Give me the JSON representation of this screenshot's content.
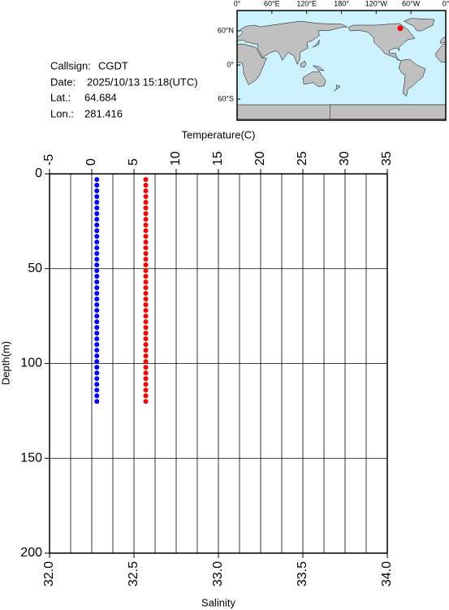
{
  "station": {
    "callsign_label": "Callsign:",
    "callsign": "CGDT",
    "date_label": "Date:",
    "date": "2025/10/13 15:18(UTC)",
    "lat_label": "Lat.:",
    "lat": 64.684,
    "lon_label": "Lon.:",
    "lon": 281.416
  },
  "map": {
    "lonticks": [
      {
        "value": 0,
        "label": "0°"
      },
      {
        "value": 60,
        "label": "60°E"
      },
      {
        "value": 120,
        "label": "120°E"
      },
      {
        "value": 180,
        "label": "180°"
      },
      {
        "value": 240,
        "label": "120°W"
      },
      {
        "value": 300,
        "label": "60°W"
      },
      {
        "value": 360,
        "label": "0°"
      }
    ],
    "latticks": [
      {
        "value": 60,
        "label": "60°N"
      },
      {
        "value": 0,
        "label": "0°"
      },
      {
        "value": -60,
        "label": "60°S"
      }
    ],
    "marker_color": "#ff0000"
  },
  "chart_data": {
    "type": "profile",
    "x_label": "Temperature(C)",
    "x2_label": "Salinity",
    "y_label": "Depth(m)",
    "xlim": [
      -5,
      35
    ],
    "xticks": [
      -5,
      0,
      5,
      10,
      15,
      20,
      25,
      30,
      35
    ],
    "xminorticks": [
      -2.5,
      2.5,
      7.5,
      12.5,
      17.5,
      22.5,
      27.5,
      32.5
    ],
    "x2lim": [
      32,
      34
    ],
    "x2ticks": [
      {
        "value": 32,
        "label": "32.0"
      },
      {
        "value": 32.5,
        "label": "32.5"
      },
      {
        "value": 33,
        "label": "33.0"
      },
      {
        "value": 33.5,
        "label": "33.5"
      },
      {
        "value": 34,
        "label": "34.0"
      }
    ],
    "ylim": [
      0,
      200
    ],
    "yticks": [
      0,
      50,
      100,
      150,
      200
    ],
    "y_inverted": true,
    "grid": true,
    "series": [
      {
        "color": "#0000ff",
        "axis": "x",
        "depth": [
          3,
          6,
          9,
          12,
          15,
          18,
          21,
          24,
          27,
          30,
          33,
          36,
          39,
          42,
          45,
          48,
          51,
          54,
          57,
          60,
          63,
          66,
          69,
          72,
          75,
          78,
          81,
          84,
          87,
          90,
          93,
          96,
          99,
          102,
          105,
          108,
          111,
          114,
          117,
          120
        ],
        "values": [
          0.6,
          0.6,
          0.6,
          0.6,
          0.6,
          0.6,
          0.6,
          0.6,
          0.6,
          0.6,
          0.6,
          0.6,
          0.6,
          0.6,
          0.6,
          0.6,
          0.6,
          0.6,
          0.6,
          0.6,
          0.6,
          0.6,
          0.6,
          0.6,
          0.6,
          0.6,
          0.6,
          0.6,
          0.6,
          0.6,
          0.6,
          0.6,
          0.6,
          0.6,
          0.6,
          0.6,
          0.6,
          0.6,
          0.6,
          0.6
        ]
      },
      {
        "color": "#ff0000",
        "axis": "x2",
        "depth": [
          3,
          6,
          9,
          12,
          15,
          18,
          21,
          24,
          27,
          30,
          33,
          36,
          39,
          42,
          45,
          48,
          51,
          54,
          57,
          60,
          63,
          66,
          69,
          72,
          75,
          78,
          81,
          84,
          87,
          90,
          93,
          96,
          99,
          102,
          105,
          108,
          111,
          114,
          117,
          120
        ],
        "values": [
          32.57,
          32.57,
          32.57,
          32.57,
          32.57,
          32.57,
          32.57,
          32.57,
          32.57,
          32.57,
          32.57,
          32.57,
          32.57,
          32.57,
          32.57,
          32.57,
          32.57,
          32.57,
          32.57,
          32.57,
          32.57,
          32.57,
          32.57,
          32.57,
          32.57,
          32.57,
          32.57,
          32.57,
          32.57,
          32.57,
          32.57,
          32.57,
          32.57,
          32.57,
          32.57,
          32.57,
          32.57,
          32.57,
          32.57,
          32.57
        ]
      }
    ]
  }
}
